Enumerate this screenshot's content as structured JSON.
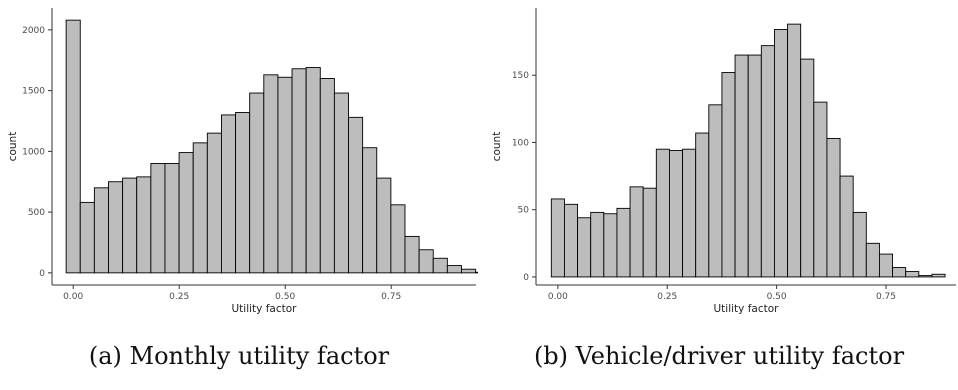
{
  "chart_data": [
    {
      "type": "bar",
      "panel": "a",
      "xlabel": "Utility factor",
      "ylabel": "count",
      "bin_width": 0.0333,
      "x_start": -0.01667,
      "xlim": [
        -0.05,
        0.95
      ],
      "ylim": [
        -100,
        2180
      ],
      "x_ticks": [
        "0.00",
        "0.25",
        "0.50",
        "0.75"
      ],
      "x_tick_values": [
        0,
        0.25,
        0.5,
        0.75
      ],
      "y_ticks": [
        "0",
        "500",
        "1000",
        "1500",
        "2000"
      ],
      "y_tick_values": [
        0,
        500,
        1000,
        1500,
        2000
      ],
      "values": [
        2080,
        580,
        700,
        750,
        780,
        790,
        900,
        900,
        990,
        1070,
        1150,
        1300,
        1320,
        1480,
        1630,
        1610,
        1680,
        1690,
        1600,
        1480,
        1280,
        1030,
        780,
        560,
        300,
        190,
        120,
        60,
        30,
        5
      ],
      "grid": false
    },
    {
      "type": "bar",
      "panel": "b",
      "xlabel": "Utility factor",
      "ylabel": "count",
      "bin_width": 0.03,
      "x_start": -0.015,
      "xlim": [
        -0.05,
        0.91
      ],
      "ylim": [
        -6,
        200
      ],
      "x_ticks": [
        "0.00",
        "0.25",
        "0.50",
        "0.75"
      ],
      "x_tick_values": [
        0,
        0.25,
        0.5,
        0.75
      ],
      "y_ticks": [
        "0",
        "50",
        "100",
        "150"
      ],
      "y_tick_values": [
        0,
        50,
        100,
        150
      ],
      "values": [
        58,
        54,
        44,
        48,
        47,
        51,
        67,
        66,
        95,
        94,
        95,
        107,
        128,
        152,
        165,
        165,
        172,
        184,
        188,
        162,
        130,
        103,
        75,
        48,
        25,
        17,
        7,
        4,
        1,
        2
      ],
      "grid": false
    }
  ],
  "captions": {
    "a": "(a) Monthly utility factor",
    "b": "(b) Vehicle/driver utility factor"
  },
  "colors": {
    "bar_fill": "#bdbdbd",
    "bar_stroke": "#000000",
    "axis": "#333333"
  }
}
